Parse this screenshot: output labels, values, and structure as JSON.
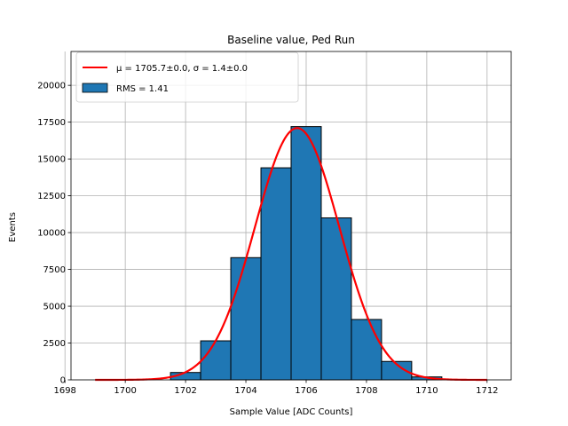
{
  "chart_data": {
    "type": "bar",
    "title": "Baseline value, Ped Run",
    "xlabel": "Sample Value [ADC Counts]",
    "ylabel": "Events",
    "xlim": [
      1698.2,
      1712.8
    ],
    "ylim": [
      0,
      22300
    ],
    "xticks": [
      "1698",
      "1700",
      "1702",
      "1704",
      "1706",
      "1708",
      "1710",
      "1712"
    ],
    "yticks": [
      "0",
      "2500",
      "5000",
      "7500",
      "10000",
      "12500",
      "15000",
      "17500",
      "20000"
    ],
    "grid": true,
    "legend_position": "upper-left",
    "histogram": {
      "name": "RMS = 1.41",
      "color": "#1f77b4",
      "bin_edges": [
        1698.5,
        1699.5,
        1700.5,
        1701.5,
        1702.5,
        1703.5,
        1704.5,
        1705.5,
        1706.5,
        1707.5,
        1708.5,
        1709.5,
        1710.5
      ],
      "counts": [
        0,
        0,
        0,
        500,
        2650,
        8300,
        14400,
        17200,
        11000,
        4100,
        1250,
        200
      ]
    },
    "fit": {
      "name": "μ = 1705.7±0.0, σ = 1.4±0.0",
      "color": "#ff0000",
      "type": "gaussian",
      "mu": 1705.7,
      "sigma": 1.4,
      "amplitude": 17100,
      "x_range": [
        1699,
        1712
      ]
    }
  }
}
